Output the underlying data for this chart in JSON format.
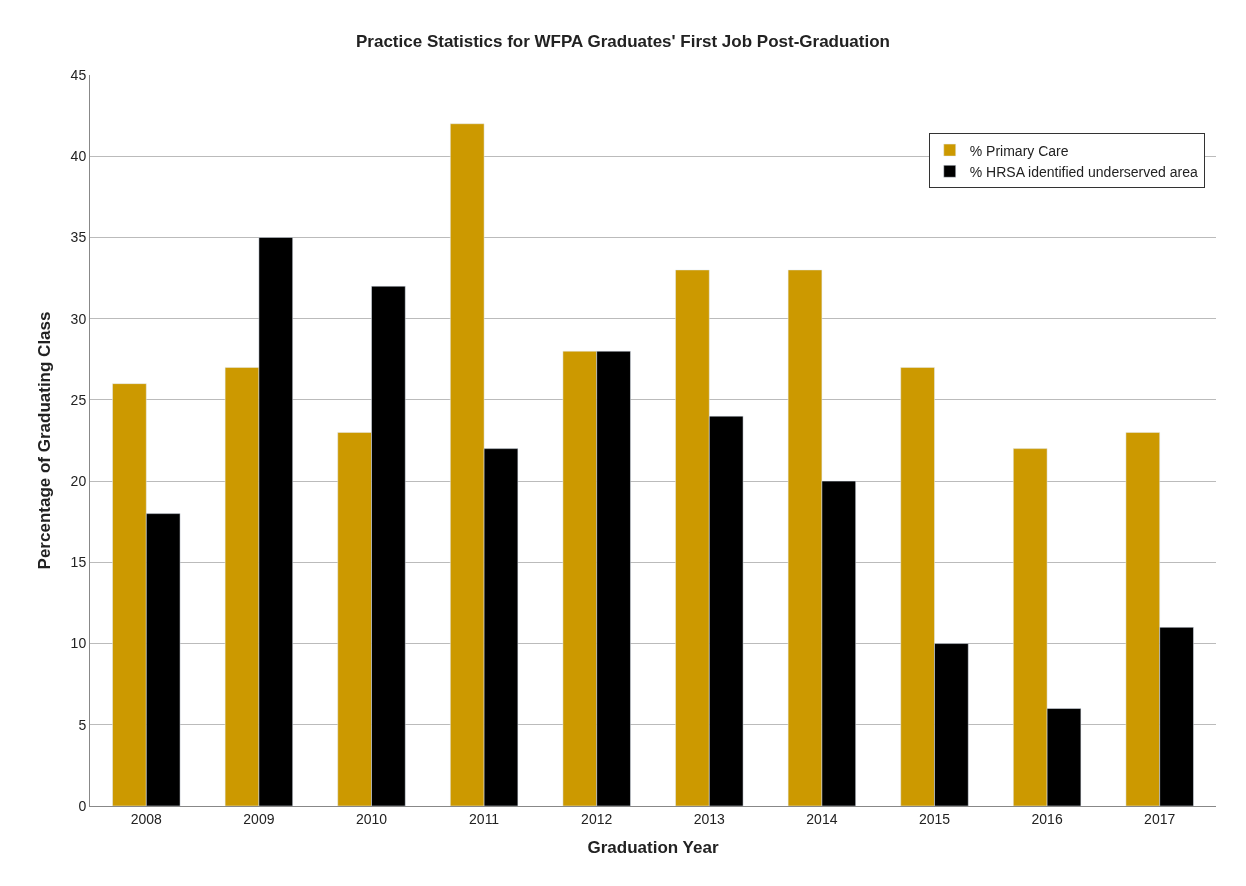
{
  "chart_data": {
    "type": "bar",
    "title": "Practice Statistics for WFPA Graduates' First Job Post-Graduation",
    "xlabel": "Graduation Year",
    "ylabel": "Percentage of Graduating Class",
    "categories": [
      "2008",
      "2009",
      "2010",
      "2011",
      "2012",
      "2013",
      "2014",
      "2015",
      "2016",
      "2017"
    ],
    "series": [
      {
        "name": "% Primary Care",
        "color": "#cc9900",
        "values": [
          26,
          27,
          23,
          42,
          28,
          33,
          33,
          27,
          22,
          23
        ]
      },
      {
        "name": "% HRSA identified underserved area",
        "color": "#000000",
        "values": [
          18,
          35,
          32,
          22,
          28,
          24,
          20,
          10,
          6,
          11
        ]
      }
    ],
    "ylim": [
      0,
      45
    ],
    "yticks": [
      0,
      5,
      10,
      15,
      20,
      25,
      30,
      35,
      40,
      45
    ],
    "grid": "y",
    "legend": "top right"
  }
}
